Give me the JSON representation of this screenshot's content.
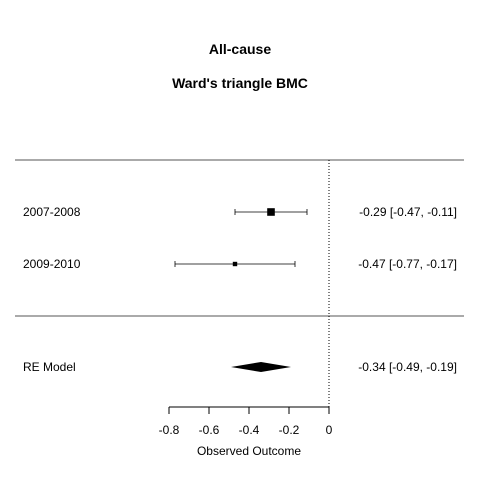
{
  "chart_data": {
    "type": "forest",
    "title": "All-cause",
    "subtitle": "Ward's triangle BMC",
    "xlabel": "Observed Outcome",
    "xlim": [
      -0.8,
      0
    ],
    "xticks": [
      -0.8,
      -0.6,
      -0.4,
      -0.2,
      0
    ],
    "xtick_labels": [
      "-0.8",
      "-0.6",
      "-0.4",
      "-0.2",
      "0"
    ],
    "reference_line": 0,
    "studies": [
      {
        "label": "2007-2008",
        "estimate": -0.29,
        "ci_low": -0.47,
        "ci_high": -0.11,
        "weight": 0.7,
        "text": "-0.29 [-0.47, -0.11]"
      },
      {
        "label": "2009-2010",
        "estimate": -0.47,
        "ci_low": -0.77,
        "ci_high": -0.17,
        "weight": 0.3,
        "text": "-0.47 [-0.77, -0.17]"
      }
    ],
    "summary": {
      "label": "RE Model",
      "estimate": -0.34,
      "ci_low": -0.49,
      "ci_high": -0.19,
      "text": "-0.34 [-0.49, -0.19]"
    }
  }
}
